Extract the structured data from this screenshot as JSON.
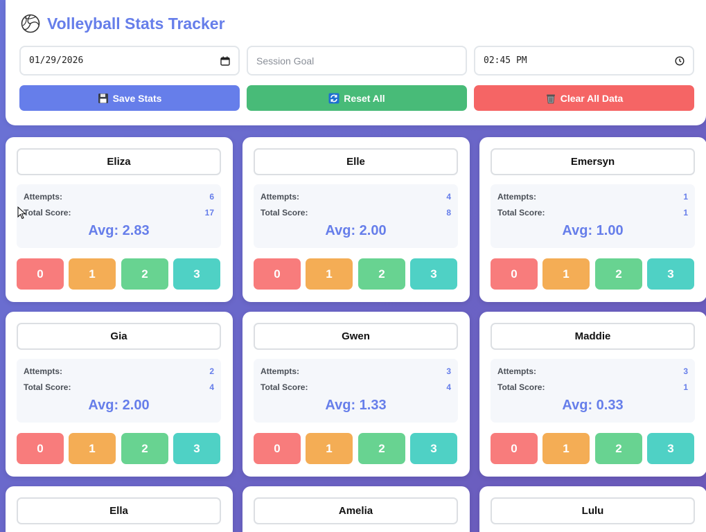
{
  "header": {
    "title": "Volleyball Stats Tracker",
    "date_value": "01/29/2026",
    "goal_placeholder": "Session Goal",
    "time_value": "02:45 PM",
    "save_label": "Save Stats",
    "reset_label": "Reset All",
    "clear_label": "Clear All Data"
  },
  "colors": {
    "accent": "#667eea",
    "save": "#667eea",
    "reset": "#48bb78",
    "clear": "#f56565",
    "score0": "#f87c7c",
    "score1": "#f4ad55",
    "score2": "#68d391",
    "score3": "#4fd1c5"
  },
  "labels": {
    "attempts": "Attempts:",
    "total": "Total Score:"
  },
  "players": [
    {
      "name": "Eliza",
      "attempts": "6",
      "total": "17",
      "avg": "Avg: 2.83"
    },
    {
      "name": "Elle",
      "attempts": "4",
      "total": "8",
      "avg": "Avg: 2.00"
    },
    {
      "name": "Emersyn",
      "attempts": "1",
      "total": "1",
      "avg": "Avg: 1.00"
    },
    {
      "name": "Gia",
      "attempts": "2",
      "total": "4",
      "avg": "Avg: 2.00"
    },
    {
      "name": "Gwen",
      "attempts": "3",
      "total": "4",
      "avg": "Avg: 1.33"
    },
    {
      "name": "Maddie",
      "attempts": "3",
      "total": "1",
      "avg": "Avg: 0.33"
    },
    {
      "name": "Ella"
    },
    {
      "name": "Amelia"
    },
    {
      "name": "Lulu"
    }
  ],
  "score_buttons": [
    "0",
    "1",
    "2",
    "3"
  ]
}
